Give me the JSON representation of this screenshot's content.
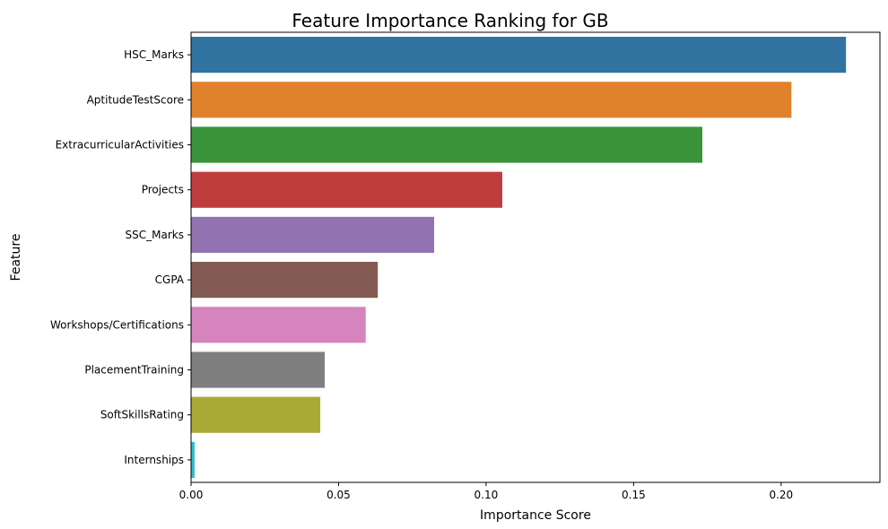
{
  "chart_data": {
    "type": "bar",
    "orientation": "horizontal",
    "title": "Feature Importance Ranking for GB",
    "xlabel": "Importance Score",
    "ylabel": "Feature",
    "xlim": [
      0,
      0.2335
    ],
    "xticks": [
      0.0,
      0.05,
      0.1,
      0.15,
      0.2
    ],
    "xtick_labels": [
      "0.00",
      "0.05",
      "0.10",
      "0.15",
      "0.20"
    ],
    "grid": false,
    "categories": [
      "HSC_Marks",
      "AptitudeTestScore",
      "ExtracurricularActivities",
      "Projects",
      "SSC_Marks",
      "CGPA",
      "Workshops/Certifications",
      "PlacementTraining",
      "SoftSkillsRating",
      "Internships"
    ],
    "values": [
      0.222,
      0.2035,
      0.1733,
      0.1055,
      0.0824,
      0.0633,
      0.0592,
      0.0453,
      0.0438,
      0.0012
    ],
    "colors": [
      "#3274a1",
      "#e1812c",
      "#3a923a",
      "#c03d3e",
      "#9372b2",
      "#845b53",
      "#d684bd",
      "#7f7f7f",
      "#a9aa35",
      "#2ebece"
    ]
  }
}
